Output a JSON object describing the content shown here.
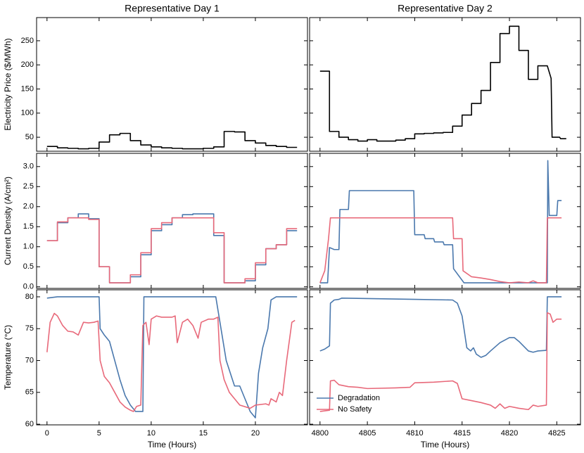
{
  "chart_data": [
    {
      "type": "line",
      "title": "Representative Day 1",
      "ylabel": "Electricity Price ($/MWh)",
      "xlim": [
        -1,
        25
      ],
      "xticks": [
        0,
        5,
        10,
        15,
        20
      ],
      "show_xtick_labels": false,
      "ylim": [
        21,
        298
      ],
      "yticks": [
        50,
        100,
        150,
        200,
        250
      ],
      "show_ytick_labels": true,
      "series": [
        {
          "color": "#000000",
          "x": [
            0,
            1,
            1,
            2,
            2,
            3,
            3,
            4,
            4,
            5,
            5,
            6,
            6,
            7,
            7,
            8,
            8,
            9,
            9,
            10,
            10,
            11,
            11,
            12,
            12,
            13,
            13,
            14,
            14,
            15,
            15,
            16,
            16,
            17,
            17,
            18,
            18,
            19,
            19,
            20,
            20,
            21,
            21,
            22,
            22,
            23,
            23,
            24
          ],
          "values": [
            31,
            31,
            28,
            28,
            27,
            27,
            26,
            26,
            27,
            27,
            40,
            40,
            55,
            55,
            58,
            58,
            43,
            43,
            34,
            34,
            30,
            30,
            28,
            28,
            27,
            27,
            26,
            26,
            26,
            26,
            27,
            27,
            30,
            30,
            62,
            62,
            61,
            61,
            43,
            43,
            38,
            38,
            33,
            33,
            31,
            31,
            29,
            29
          ]
        }
      ]
    },
    {
      "type": "line",
      "title": "Representative Day 2",
      "xlim": [
        4798.9,
        4827.5
      ],
      "xticks": [
        4800,
        4805,
        4810,
        4815,
        4820,
        4825
      ],
      "show_xtick_labels": false,
      "ylim": [
        21,
        298
      ],
      "yticks": [
        50,
        100,
        150,
        200,
        250
      ],
      "show_ytick_labels": false,
      "series": [
        {
          "color": "#000000",
          "x": [
            4800,
            4801,
            4801,
            4802,
            4802,
            4803,
            4803,
            4804,
            4804,
            4805,
            4805,
            4806,
            4806,
            4807,
            4807,
            4808,
            4808,
            4809,
            4809,
            4810,
            4810,
            4811,
            4811,
            4812,
            4812,
            4813,
            4813,
            4814,
            4814,
            4815,
            4815,
            4816,
            4816,
            4817,
            4817,
            4818,
            4818,
            4819,
            4819,
            4820,
            4820,
            4821,
            4821,
            4822,
            4822,
            4823,
            4823,
            4824,
            4824.4,
            4824.5,
            4825.3,
            4825.4,
            4826
          ],
          "values": [
            187,
            187,
            62,
            62,
            50,
            50,
            45,
            45,
            42,
            42,
            45,
            45,
            42,
            42,
            42,
            42,
            44,
            44,
            47,
            47,
            57,
            57,
            58,
            58,
            59,
            59,
            60,
            60,
            73,
            73,
            96,
            96,
            120,
            120,
            147,
            147,
            205,
            205,
            265,
            265,
            280,
            280,
            230,
            230,
            170,
            170,
            198,
            198,
            172,
            50,
            50,
            47,
            47
          ]
        }
      ]
    },
    {
      "type": "line",
      "ylabel": "Current Density (A/cm²)",
      "xlim": [
        -1,
        25
      ],
      "xticks": [
        0,
        5,
        10,
        15,
        20
      ],
      "show_xtick_labels": false,
      "ylim": [
        -0.04,
        3.33
      ],
      "yticks": [
        {
          "value": 0,
          "label": "0.0"
        },
        0.5,
        {
          "value": 1,
          "label": "1.0"
        },
        1.5,
        {
          "value": 2,
          "label": "2.0"
        },
        2.5,
        {
          "value": 3,
          "label": "3.0"
        }
      ],
      "show_ytick_labels": true,
      "x": [
        0,
        1,
        1,
        2,
        2,
        3,
        3,
        4,
        4,
        5,
        5,
        6,
        6,
        7,
        7,
        8,
        8,
        9,
        9,
        10,
        10,
        11,
        11,
        12,
        12,
        13,
        13,
        14,
        14,
        15,
        15,
        16,
        16,
        17,
        17,
        18,
        18,
        19,
        19,
        20,
        20,
        21,
        21,
        22,
        22,
        23,
        23,
        24
      ],
      "series": [
        {
          "name": "Degradation",
          "color": "#4a78ad",
          "values": [
            1.15,
            1.15,
            1.6,
            1.6,
            1.72,
            1.72,
            1.82,
            1.82,
            1.7,
            1.7,
            0.5,
            0.5,
            0.1,
            0.1,
            0.1,
            0.1,
            0.25,
            0.25,
            0.8,
            0.8,
            1.4,
            1.4,
            1.55,
            1.55,
            1.72,
            1.72,
            1.8,
            1.8,
            1.82,
            1.82,
            1.82,
            1.82,
            1.28,
            1.28,
            0.1,
            0.1,
            0.1,
            0.1,
            0.15,
            0.15,
            0.55,
            0.55,
            0.95,
            0.95,
            1.05,
            1.05,
            1.4,
            1.4
          ]
        },
        {
          "name": "No Safety",
          "color": "#e8697a",
          "values": [
            1.15,
            1.15,
            1.62,
            1.62,
            1.72,
            1.72,
            1.72,
            1.72,
            1.68,
            1.68,
            0.5,
            0.5,
            0.1,
            0.1,
            0.1,
            0.1,
            0.3,
            0.3,
            0.85,
            0.85,
            1.45,
            1.45,
            1.6,
            1.6,
            1.72,
            1.72,
            1.72,
            1.72,
            1.72,
            1.72,
            1.72,
            1.72,
            1.35,
            1.35,
            0.1,
            0.1,
            0.1,
            0.1,
            0.2,
            0.2,
            0.6,
            0.6,
            0.95,
            0.95,
            1.05,
            1.05,
            1.45,
            1.45
          ]
        }
      ]
    },
    {
      "type": "line",
      "xlim": [
        4798.9,
        4827.5
      ],
      "xticks": [
        4800,
        4805,
        4810,
        4815,
        4820,
        4825
      ],
      "show_xtick_labels": false,
      "ylim": [
        -0.04,
        3.33
      ],
      "yticks": [
        0,
        0.5,
        1,
        1.5,
        2,
        2.5,
        3
      ],
      "show_ytick_labels": false,
      "series": [
        {
          "name": "Degradation",
          "color": "#4a78ad",
          "x": [
            4800,
            4800.8,
            4801,
            4801.5,
            4801.6,
            4802,
            4802.1,
            4803,
            4803.1,
            4809.5,
            4809.9,
            4810,
            4811,
            4811.1,
            4812,
            4812.1,
            4813,
            4813.1,
            4814,
            4814.1,
            4815.2,
            4824,
            4824.05,
            4824.2,
            4825,
            4825.1,
            4825.5
          ],
          "values": [
            0.1,
            0.1,
            0.98,
            0.93,
            0.93,
            0.93,
            1.93,
            1.93,
            2.4,
            2.4,
            2.4,
            1.3,
            1.3,
            1.2,
            1.2,
            1.12,
            1.12,
            1.05,
            1.05,
            0.45,
            0.1,
            0.1,
            3.15,
            1.78,
            1.78,
            2.15,
            2.15
          ]
        },
        {
          "name": "No Safety",
          "color": "#e8697a",
          "x": [
            4800,
            4800.5,
            4800.9,
            4801.1,
            4814,
            4814.1,
            4815,
            4815.1,
            4816,
            4817,
            4818,
            4819,
            4820,
            4821,
            4822,
            4822.5,
            4823,
            4823.9,
            4824,
            4825.5
          ],
          "values": [
            0.1,
            0.4,
            1.2,
            1.72,
            1.72,
            1.2,
            1.2,
            0.4,
            0.25,
            0.22,
            0.18,
            0.13,
            0.1,
            0.12,
            0.1,
            0.15,
            0.1,
            0.1,
            1.72,
            1.72
          ]
        }
      ]
    },
    {
      "type": "line",
      "ylabel": "Temperature (°C)",
      "xlabel": "Time (Hours)",
      "xlim": [
        -1,
        25
      ],
      "xticks": [
        0,
        5,
        10,
        15,
        20
      ],
      "show_xtick_labels": true,
      "ylim": [
        59.9,
        81.1
      ],
      "yticks": [
        60,
        65,
        70,
        75,
        80
      ],
      "show_ytick_labels": true,
      "series": [
        {
          "name": "Degradation",
          "color": "#4a78ad",
          "x": [
            0,
            1,
            5,
            5.1,
            5.5,
            6,
            6.5,
            7,
            7.5,
            8,
            8.5,
            9.2,
            9.3,
            16.2,
            16.8,
            17.2,
            17.8,
            18,
            18.5,
            19,
            19.5,
            20,
            20.3,
            20.7,
            21.2,
            21.5,
            22,
            24
          ],
          "values": [
            79.8,
            80,
            80,
            75,
            74,
            73,
            70,
            67,
            64.5,
            63,
            62,
            62,
            80,
            80,
            74,
            70,
            67,
            66,
            66,
            64,
            62,
            61,
            68,
            72,
            75,
            79.5,
            80,
            80
          ]
        },
        {
          "name": "No Safety",
          "color": "#e8697a",
          "x": [
            0,
            0.3,
            0.7,
            1,
            1.5,
            2,
            2.5,
            3,
            3.5,
            4,
            4.5,
            4.9,
            5.1,
            5.5,
            6,
            6.5,
            7,
            7.5,
            8,
            8.3,
            8.6,
            9,
            9.2,
            9.5,
            9.8,
            10,
            10.5,
            11,
            12,
            12.3,
            12.5,
            13,
            13.5,
            14,
            14.5,
            14.8,
            15.5,
            16,
            16.4,
            16.6,
            17,
            17.5,
            18,
            18.5,
            19.5,
            20,
            21,
            21.3,
            21.5,
            22,
            22.3,
            22.6,
            23,
            23.5,
            23.8
          ],
          "values": [
            71.3,
            76,
            77.4,
            77,
            75.5,
            74.6,
            74.5,
            74,
            76,
            75.9,
            76,
            76.2,
            70,
            67.5,
            66.5,
            65,
            63.5,
            62.7,
            62.2,
            62,
            62.8,
            63,
            75.5,
            76,
            72.5,
            76.5,
            77,
            76.8,
            76.8,
            77,
            72.8,
            76,
            76.5,
            75.5,
            73.5,
            76,
            76.5,
            76.5,
            76.8,
            70,
            67,
            65,
            64,
            63,
            62.5,
            63,
            63.2,
            63,
            64,
            63.5,
            65,
            64.5,
            70,
            76,
            76.3
          ]
        }
      ]
    },
    {
      "type": "line",
      "xlabel": "Time (Hours)",
      "legend": "lower left",
      "xlim": [
        4798.9,
        4827.5
      ],
      "xticks": [
        4800,
        4805,
        4810,
        4815,
        4820,
        4825
      ],
      "show_xtick_labels": true,
      "ylim": [
        59.9,
        81.1
      ],
      "yticks": [
        60,
        65,
        70,
        75,
        80
      ],
      "show_ytick_labels": false,
      "series": [
        {
          "name": "Degradation",
          "color": "#4a78ad",
          "x": [
            4800,
            4800.5,
            4801,
            4801.1,
            4801.5,
            4802,
            4802.3,
            4810,
            4814,
            4814.5,
            4815,
            4815.5,
            4815.9,
            4816.2,
            4816.5,
            4817,
            4817.5,
            4818,
            4819,
            4820,
            4820.5,
            4821,
            4822,
            4822.5,
            4823,
            4823.9,
            4824,
            4825.5
          ],
          "values": [
            71.5,
            71.8,
            72.3,
            79,
            79.5,
            79.6,
            79.8,
            79.6,
            79.5,
            79,
            77,
            72,
            71.5,
            72,
            71,
            70.5,
            70.8,
            71.5,
            72.8,
            73.6,
            73.6,
            73,
            71.5,
            71.3,
            71.5,
            71.6,
            80,
            80
          ]
        },
        {
          "name": "No Safety",
          "color": "#e8697a",
          "x": [
            4800,
            4801,
            4801.1,
            4801.5,
            4802,
            4803,
            4804,
            4805,
            4808,
            4809.5,
            4810,
            4812,
            4814,
            4814.5,
            4815,
            4816,
            4817,
            4818,
            4818.5,
            4819,
            4819.5,
            4820,
            4821,
            4822,
            4822.5,
            4823,
            4823.9,
            4824,
            4824.3,
            4824.6,
            4825,
            4825.5
          ],
          "values": [
            62,
            62.2,
            66.8,
            66.9,
            66.2,
            65.9,
            65.8,
            65.6,
            65.7,
            65.8,
            66.5,
            66.6,
            66.8,
            66.4,
            64,
            63.7,
            63.4,
            63,
            62.5,
            63.2,
            62.5,
            62.8,
            62.5,
            62.3,
            63,
            62.8,
            63,
            77.5,
            77.3,
            76,
            76.5,
            76.5
          ]
        }
      ]
    }
  ]
}
